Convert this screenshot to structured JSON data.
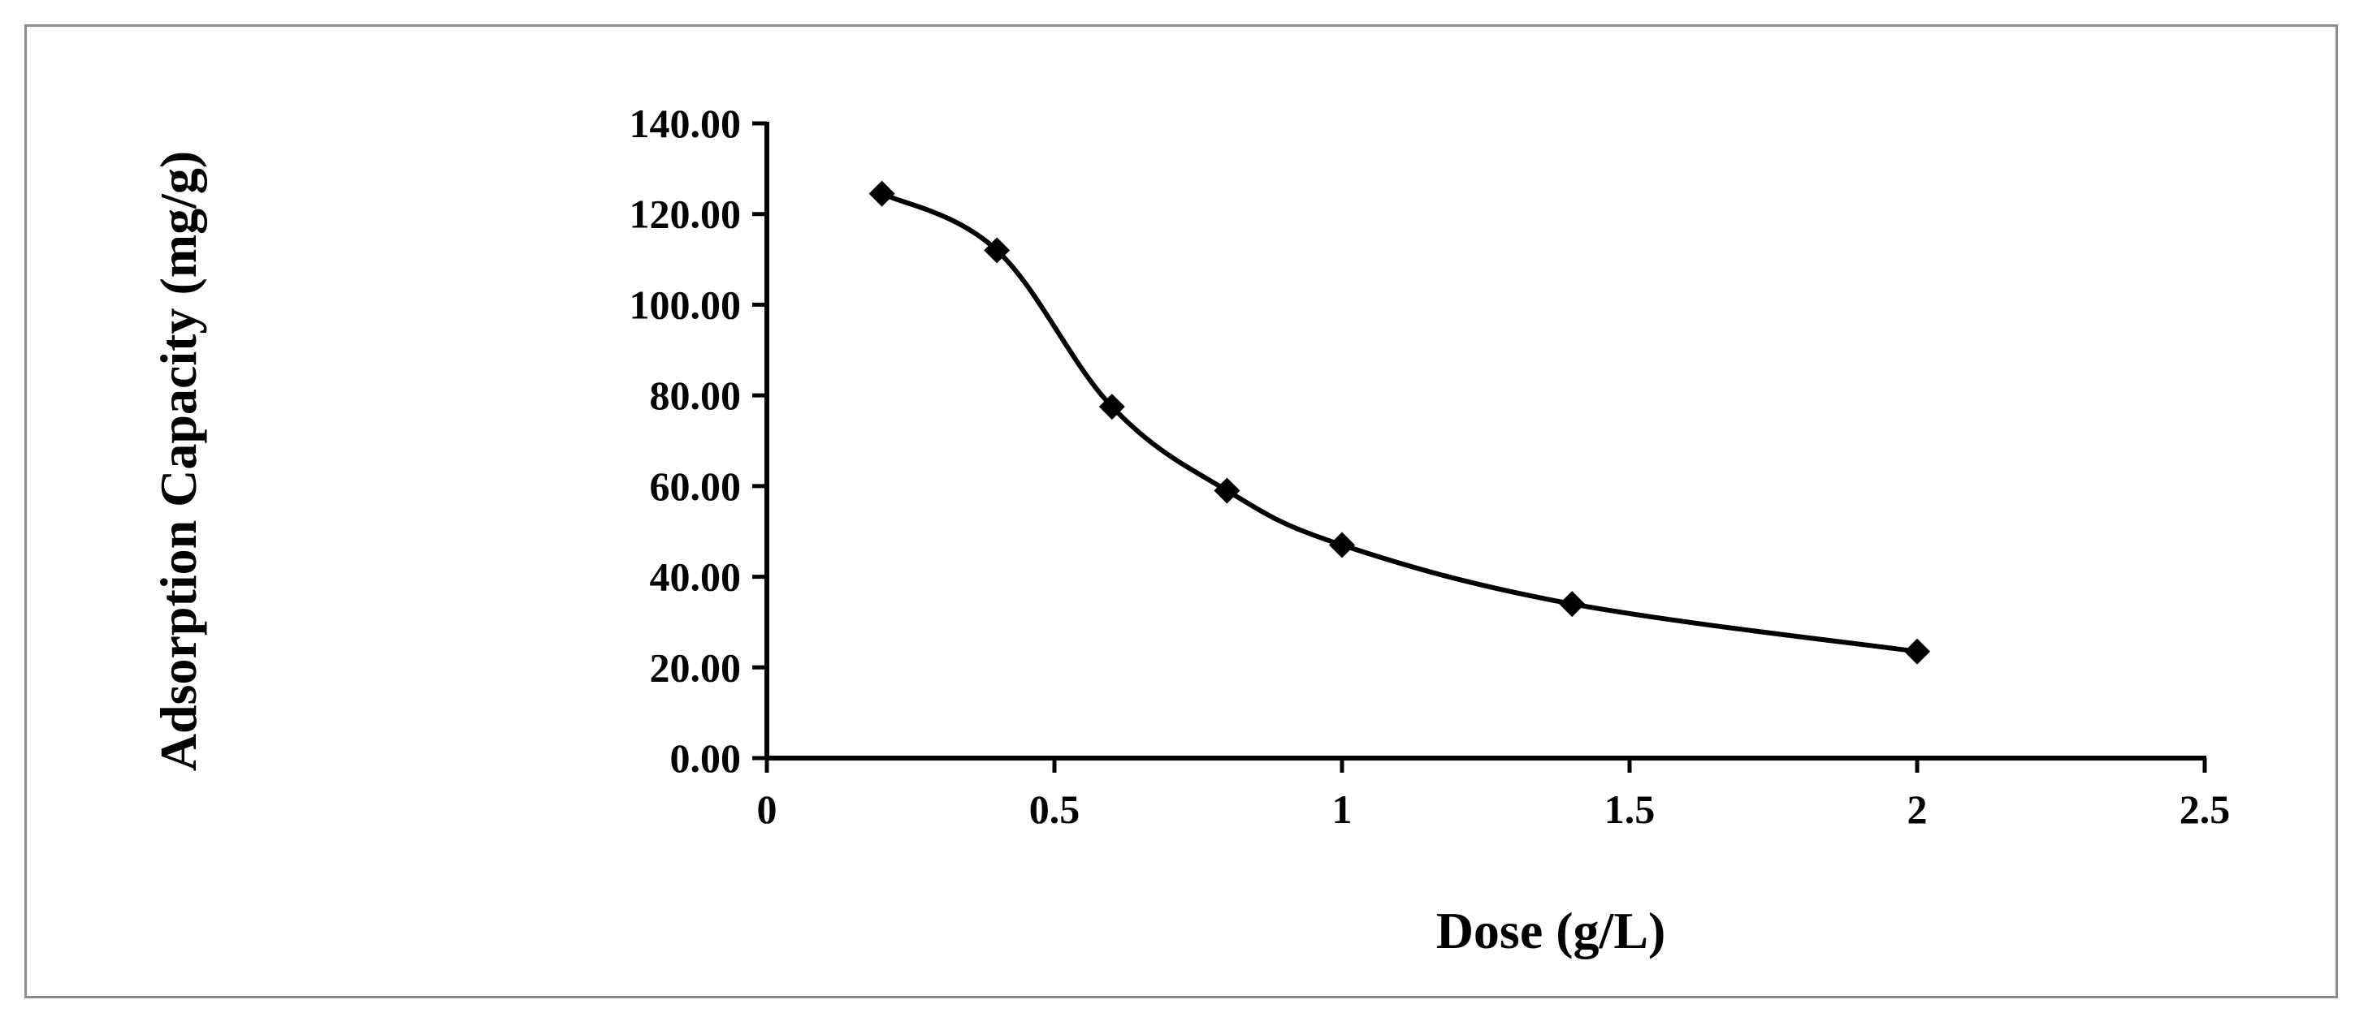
{
  "chart_data": {
    "type": "line",
    "title": "",
    "xlabel": "Dose (g/L)",
    "ylabel": "Adsorption Capacity (mg/g)",
    "xlim": [
      0,
      2.5
    ],
    "ylim": [
      0,
      140
    ],
    "x_ticks": [
      0,
      0.5,
      1,
      1.5,
      2,
      2.5
    ],
    "x_tick_labels": [
      "0",
      "0.5",
      "1",
      "1.5",
      "2",
      "2.5"
    ],
    "y_ticks": [
      0,
      20,
      40,
      60,
      80,
      100,
      120,
      140
    ],
    "y_tick_labels": [
      "0.00",
      "20.00",
      "40.00",
      "60.00",
      "80.00",
      "100.00",
      "120.00",
      "140.00"
    ],
    "grid": false,
    "legend": "none",
    "series": [
      {
        "name": "Adsorption Capacity",
        "marker": "diamond",
        "color": "#000000",
        "x": [
          0.2,
          0.4,
          0.6,
          0.8,
          1.0,
          1.4,
          2.0
        ],
        "y": [
          124.5,
          112.0,
          77.5,
          59.0,
          47.0,
          34.0,
          23.5
        ]
      }
    ]
  }
}
